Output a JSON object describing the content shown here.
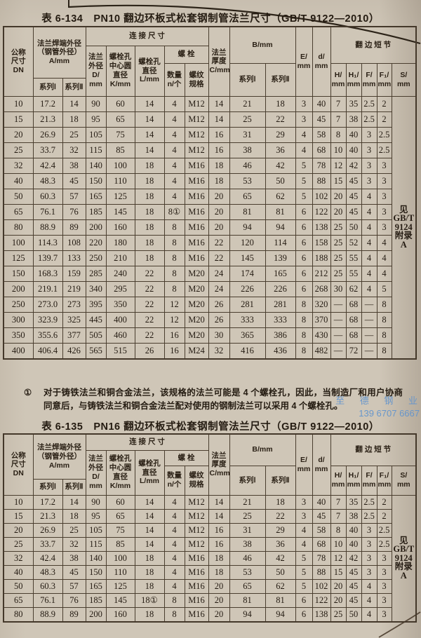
{
  "page": {
    "paper_color": "#cfc6b7",
    "ink_color": "#241b12",
    "border_color": "#4a3e2f",
    "watermark_color": "#6092cd"
  },
  "headers": {
    "dn": "公称\n尺寸\nDN",
    "weld_group": "法兰焊端外径\n（钢管外径）\nA/mm",
    "series1": "系列Ⅰ",
    "series2": "系列Ⅱ",
    "conn_group": "连 接 尺 寸",
    "flange_od": "法兰\n外径\nD/\nmm",
    "bolt_circle": "螺栓孔\n中心圆\n直径\nK/mm",
    "bolt_hole": "螺栓孔\n直径\nL/mm",
    "bolt_group": "螺  栓",
    "bolt_qty": "数量\nn/个",
    "thread": "螺纹\n规格",
    "thickness": "法兰\n厚度\nC/mm",
    "b_group": "B/mm",
    "e": "E/\nmm",
    "d": "d/\nmm",
    "stub_group": "翻 边 短 节",
    "h": "H/\nmm",
    "h1": "H₁/\nmm",
    "f": "F/\nmm",
    "f1": "F₁/\nmm",
    "s": "S/\nmm"
  },
  "table1": {
    "title": "表 6-134　PN10 翻边环板式松套钢制管法兰尺寸（GB/T 9122—2010）",
    "note": "见\nGB/T 9124\n附录 A",
    "rows": [
      [
        "10",
        "17.2",
        "14",
        "90",
        "60",
        "14",
        "4",
        "M12",
        "14",
        "21",
        "18",
        "3",
        "40",
        "7",
        "35",
        "2.5",
        "2"
      ],
      [
        "15",
        "21.3",
        "18",
        "95",
        "65",
        "14",
        "4",
        "M12",
        "14",
        "25",
        "22",
        "3",
        "45",
        "7",
        "38",
        "2.5",
        "2"
      ],
      [
        "20",
        "26.9",
        "25",
        "105",
        "75",
        "14",
        "4",
        "M12",
        "16",
        "31",
        "29",
        "4",
        "58",
        "8",
        "40",
        "3",
        "2.5"
      ],
      [
        "25",
        "33.7",
        "32",
        "115",
        "85",
        "14",
        "4",
        "M12",
        "16",
        "38",
        "36",
        "4",
        "68",
        "10",
        "40",
        "3",
        "2.5"
      ],
      [
        "32",
        "42.4",
        "38",
        "140",
        "100",
        "18",
        "4",
        "M16",
        "18",
        "46",
        "42",
        "5",
        "78",
        "12",
        "42",
        "3",
        "3"
      ],
      [
        "40",
        "48.3",
        "45",
        "150",
        "110",
        "18",
        "4",
        "M16",
        "18",
        "53",
        "50",
        "5",
        "88",
        "15",
        "45",
        "3",
        "3"
      ],
      [
        "50",
        "60.3",
        "57",
        "165",
        "125",
        "18",
        "4",
        "M16",
        "20",
        "65",
        "62",
        "5",
        "102",
        "20",
        "45",
        "4",
        "3"
      ],
      [
        "65",
        "76.1",
        "76",
        "185",
        "145",
        "18",
        "8①",
        "M16",
        "20",
        "81",
        "81",
        "6",
        "122",
        "20",
        "45",
        "4",
        "3"
      ],
      [
        "80",
        "88.9",
        "89",
        "200",
        "160",
        "18",
        "8",
        "M16",
        "20",
        "94",
        "94",
        "6",
        "138",
        "25",
        "50",
        "4",
        "3"
      ],
      [
        "100",
        "114.3",
        "108",
        "220",
        "180",
        "18",
        "8",
        "M16",
        "22",
        "120",
        "114",
        "6",
        "158",
        "25",
        "52",
        "4",
        "4"
      ],
      [
        "125",
        "139.7",
        "133",
        "250",
        "210",
        "18",
        "8",
        "M16",
        "22",
        "145",
        "139",
        "6",
        "188",
        "25",
        "55",
        "4",
        "4"
      ],
      [
        "150",
        "168.3",
        "159",
        "285",
        "240",
        "22",
        "8",
        "M20",
        "24",
        "174",
        "165",
        "6",
        "212",
        "25",
        "55",
        "4",
        "4"
      ],
      [
        "200",
        "219.1",
        "219",
        "340",
        "295",
        "22",
        "8",
        "M20",
        "24",
        "226",
        "226",
        "6",
        "268",
        "30",
        "62",
        "4",
        "5"
      ],
      [
        "250",
        "273.0",
        "273",
        "395",
        "350",
        "22",
        "12",
        "M20",
        "26",
        "281",
        "281",
        "8",
        "320",
        "—",
        "68",
        "—",
        "8"
      ],
      [
        "300",
        "323.9",
        "325",
        "445",
        "400",
        "22",
        "12",
        "M20",
        "26",
        "333",
        "333",
        "8",
        "370",
        "—",
        "68",
        "—",
        "8"
      ],
      [
        "350",
        "355.6",
        "377",
        "505",
        "460",
        "22",
        "16",
        "M20",
        "30",
        "365",
        "386",
        "8",
        "430",
        "—",
        "68",
        "—",
        "8"
      ],
      [
        "400",
        "406.4",
        "426",
        "565",
        "515",
        "26",
        "16",
        "M24",
        "32",
        "416",
        "436",
        "8",
        "482",
        "—",
        "72",
        "—",
        "8"
      ]
    ]
  },
  "footnote": {
    "marker": "①",
    "text": "对于铸铁法兰和铜合金法兰，该规格的法兰可能是 4 个螺栓孔，因此，当制造厂和用户协商同意后，与铸铁法兰和铜合金法兰配对使用的钢制法兰可以采用 4 个螺栓孔。"
  },
  "table2": {
    "title": "表 6-135　PN16 翻边环板式松套钢制管法兰尺寸（GB/T 9122—2010）",
    "note": "见\nGB/T 9124\n附录 A",
    "rows": [
      [
        "10",
        "17.2",
        "14",
        "90",
        "60",
        "14",
        "4",
        "M12",
        "14",
        "21",
        "18",
        "3",
        "40",
        "7",
        "35",
        "2.5",
        "2"
      ],
      [
        "15",
        "21.3",
        "18",
        "95",
        "65",
        "14",
        "4",
        "M12",
        "14",
        "25",
        "22",
        "3",
        "45",
        "7",
        "38",
        "2.5",
        "2"
      ],
      [
        "20",
        "26.9",
        "25",
        "105",
        "75",
        "14",
        "4",
        "M12",
        "16",
        "31",
        "29",
        "4",
        "58",
        "8",
        "40",
        "3",
        "2.5"
      ],
      [
        "25",
        "33.7",
        "32",
        "115",
        "85",
        "14",
        "4",
        "M12",
        "16",
        "38",
        "36",
        "4",
        "68",
        "10",
        "40",
        "3",
        "2.5"
      ],
      [
        "32",
        "42.4",
        "38",
        "140",
        "100",
        "18",
        "4",
        "M16",
        "18",
        "46",
        "42",
        "5",
        "78",
        "12",
        "42",
        "3",
        "3"
      ],
      [
        "40",
        "48.3",
        "45",
        "150",
        "110",
        "18",
        "4",
        "M16",
        "18",
        "53",
        "50",
        "5",
        "88",
        "15",
        "45",
        "3",
        "3"
      ],
      [
        "50",
        "60.3",
        "57",
        "165",
        "125",
        "18",
        "4",
        "M16",
        "20",
        "65",
        "62",
        "5",
        "102",
        "20",
        "45",
        "4",
        "3"
      ],
      [
        "65",
        "76.1",
        "76",
        "185",
        "145",
        "18①",
        "8",
        "M16",
        "20",
        "81",
        "81",
        "6",
        "122",
        "20",
        "45",
        "4",
        "3"
      ],
      [
        "80",
        "88.9",
        "89",
        "200",
        "160",
        "18",
        "8",
        "M16",
        "20",
        "94",
        "94",
        "6",
        "138",
        "25",
        "50",
        "4",
        "3"
      ]
    ]
  },
  "watermark": {
    "line1": "至 德 钢 业",
    "line2": "139 6707 6667"
  }
}
